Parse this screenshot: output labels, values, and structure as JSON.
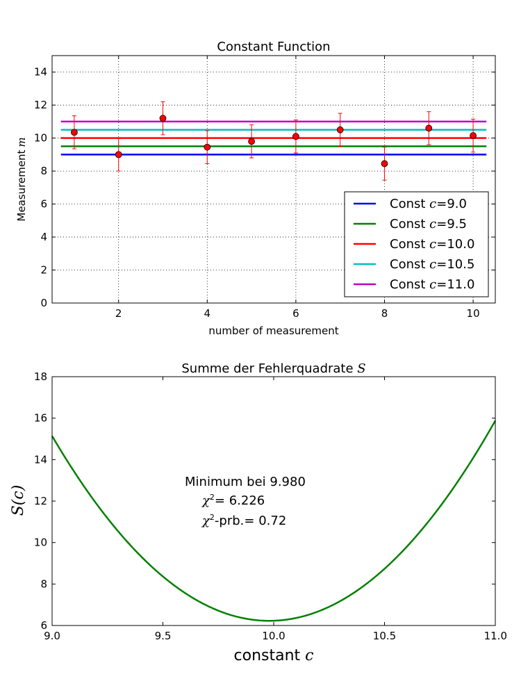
{
  "chart_data": [
    {
      "type": "scatter",
      "title": "Constant Function",
      "xlabel": "number of measurement",
      "ylabel_text": "Measurement",
      "ylabel_math": "m",
      "xlim": [
        0.5,
        10.5
      ],
      "ylim": [
        0,
        15
      ],
      "xticks": [
        2,
        4,
        6,
        8,
        10
      ],
      "yticks": [
        0,
        2,
        4,
        6,
        8,
        10,
        12,
        14
      ],
      "grid": true,
      "legend_position": "lower-right",
      "measurements": {
        "x": [
          1,
          2,
          3,
          4,
          5,
          6,
          7,
          8,
          9,
          10
        ],
        "y": [
          10.35,
          9.0,
          11.2,
          9.45,
          9.8,
          10.1,
          10.5,
          8.45,
          10.6,
          10.15
        ],
        "yerr": [
          1.0,
          1.0,
          1.0,
          1.0,
          1.0,
          1.0,
          1.0,
          1.0,
          1.0,
          1.0
        ],
        "color": "#ff0000"
      },
      "series": [
        {
          "name": "Const c=9.0",
          "label_prefix": "Const ",
          "label_var": "c",
          "label_value": "=9.0",
          "value": 9.0,
          "color": "#0000ff"
        },
        {
          "name": "Const c=9.5",
          "label_prefix": "Const ",
          "label_var": "c",
          "label_value": "=9.5",
          "value": 9.5,
          "color": "#008000"
        },
        {
          "name": "Const c=10.0",
          "label_prefix": "Const ",
          "label_var": "c",
          "label_value": "=10.0",
          "value": 10.0,
          "color": "#ff0000"
        },
        {
          "name": "Const c=10.5",
          "label_prefix": "Const ",
          "label_var": "c",
          "label_value": "=10.5",
          "value": 10.5,
          "color": "#00bfbf"
        },
        {
          "name": "Const c=11.0",
          "label_prefix": "Const ",
          "label_var": "c",
          "label_value": "=11.0",
          "value": 11.0,
          "color": "#bf00bf"
        }
      ],
      "line_x_range": [
        0.7,
        10.3
      ]
    },
    {
      "type": "line",
      "title_text": "Summe der Fehlerquadrate ",
      "title_math": "S",
      "xlabel_text": "constant ",
      "xlabel_math": "c",
      "ylabel_math": "S(c)",
      "xlim": [
        9.0,
        11.0
      ],
      "ylim": [
        6,
        18
      ],
      "xticks": [
        9.0,
        9.5,
        10.0,
        10.5,
        11.0
      ],
      "xtick_labels": [
        "9.0",
        "9.5",
        "10.0",
        "10.5",
        "11.0"
      ],
      "yticks": [
        6,
        8,
        10,
        12,
        14,
        16,
        18
      ],
      "grid": false,
      "series": [
        {
          "name": "S(c)",
          "minimum_c": 9.98,
          "minimum_S": 6.226,
          "quadratic_coeff": 9.28,
          "x_range": [
            9.0,
            11.0
          ],
          "color": "#008000"
        }
      ],
      "annotations": {
        "line1": "Minimum bei 9.980",
        "chi2_symbol": "χ",
        "chi2_sup": "2",
        "line2_rest": "= 6.226",
        "line3_rest": "-prb.= 0.72"
      }
    }
  ]
}
